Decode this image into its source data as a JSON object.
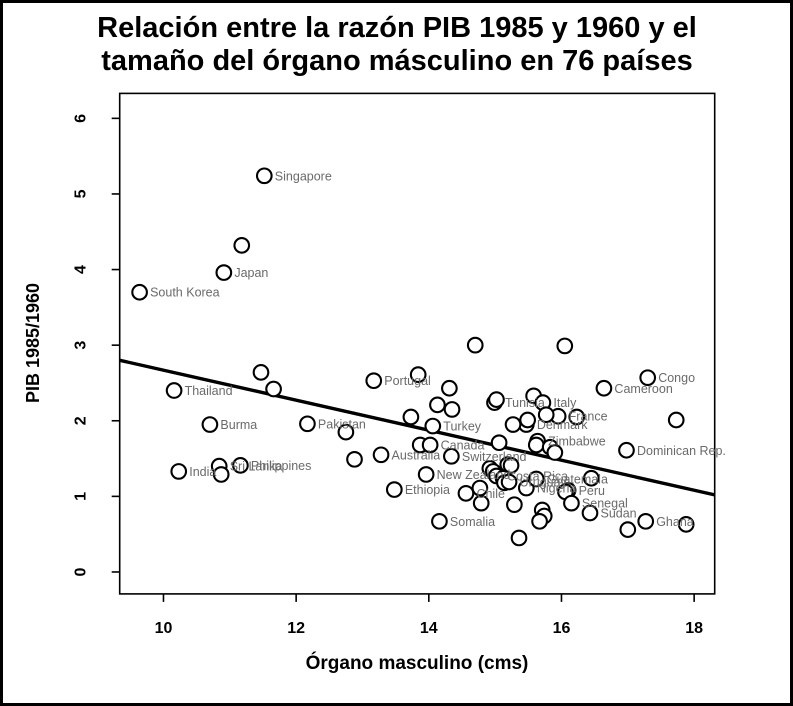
{
  "title": {
    "line1": "Relación entre la razón PIB 1985 y 1960 y el",
    "line2": "tamaño del órgano másculino en 76 países"
  },
  "style": {
    "title_color": "#000000",
    "axis_color": "#000000",
    "point_color": "#000000",
    "country_label_color": "#6a6a6a",
    "background": "#ffffff"
  },
  "chart_data": {
    "type": "scatter",
    "title": "Relación entre la razón PIB 1985 y 1960 y el tamaño del órgano másculino en 76 países",
    "xlabel": "Órgano masculino (cms)",
    "ylabel": "PIB 1985/1960",
    "xlim": [
      9.34,
      18.31
    ],
    "ylim": [
      -0.29,
      6.33
    ],
    "xticks": [
      10,
      12,
      14,
      16,
      18
    ],
    "yticks": [
      0,
      1,
      2,
      3,
      4,
      5,
      6
    ],
    "grid": false,
    "legend": "none",
    "regression_line": {
      "x1": 9.34,
      "y1": 2.8,
      "x2": 18.31,
      "y2": 1.02
    },
    "points": [
      {
        "x": 9.64,
        "y": 3.7,
        "label": "South Korea"
      },
      {
        "x": 10.91,
        "y": 3.96,
        "label": "Japan"
      },
      {
        "x": 11.52,
        "y": 5.24,
        "label": "Singapore"
      },
      {
        "x": 11.18,
        "y": 4.32,
        "label": ""
      },
      {
        "x": 10.16,
        "y": 2.4,
        "label": "Thailand"
      },
      {
        "x": 10.7,
        "y": 1.95,
        "label": "Burma"
      },
      {
        "x": 10.23,
        "y": 1.33,
        "label": "India"
      },
      {
        "x": 10.84,
        "y": 1.4,
        "label": "Sri Lanka"
      },
      {
        "x": 10.87,
        "y": 1.29,
        "label": ""
      },
      {
        "x": 11.16,
        "y": 1.41,
        "label": "Philippines"
      },
      {
        "x": 11.47,
        "y": 2.64,
        "label": ""
      },
      {
        "x": 11.66,
        "y": 2.42,
        "label": ""
      },
      {
        "x": 12.17,
        "y": 1.96,
        "label": "Pakistan"
      },
      {
        "x": 12.75,
        "y": 1.85,
        "label": ""
      },
      {
        "x": 12.88,
        "y": 1.49,
        "label": ""
      },
      {
        "x": 13.17,
        "y": 2.53,
        "label": "Portugal"
      },
      {
        "x": 13.84,
        "y": 2.61,
        "label": ""
      },
      {
        "x": 13.73,
        "y": 2.05,
        "label": ""
      },
      {
        "x": 13.28,
        "y": 1.55,
        "label": "Australia"
      },
      {
        "x": 13.87,
        "y": 1.68,
        "label": ""
      },
      {
        "x": 14.02,
        "y": 1.68,
        "label": "Canada"
      },
      {
        "x": 14.06,
        "y": 1.93,
        "label": "Turkey"
      },
      {
        "x": 14.34,
        "y": 1.53,
        "label": "Switzerland"
      },
      {
        "x": 13.96,
        "y": 1.29,
        "label": "New Zealand"
      },
      {
        "x": 13.48,
        "y": 1.09,
        "label": "Ethiopia"
      },
      {
        "x": 14.16,
        "y": 0.67,
        "label": "Somalia"
      },
      {
        "x": 14.31,
        "y": 2.43,
        "label": ""
      },
      {
        "x": 14.13,
        "y": 2.21,
        "label": ""
      },
      {
        "x": 14.35,
        "y": 2.15,
        "label": ""
      },
      {
        "x": 14.7,
        "y": 3.0,
        "label": ""
      },
      {
        "x": 16.05,
        "y": 2.99,
        "label": ""
      },
      {
        "x": 14.99,
        "y": 2.24,
        "label": "Tunisia"
      },
      {
        "x": 15.02,
        "y": 2.28,
        "label": ""
      },
      {
        "x": 15.58,
        "y": 2.33,
        "label": ""
      },
      {
        "x": 15.72,
        "y": 2.24,
        "label": "Italy"
      },
      {
        "x": 15.95,
        "y": 2.06,
        "label": "France"
      },
      {
        "x": 16.23,
        "y": 2.05,
        "label": ""
      },
      {
        "x": 15.47,
        "y": 1.95,
        "label": "Denmark"
      },
      {
        "x": 15.27,
        "y": 1.95,
        "label": ""
      },
      {
        "x": 15.49,
        "y": 2.01,
        "label": ""
      },
      {
        "x": 15.77,
        "y": 2.08,
        "label": ""
      },
      {
        "x": 15.64,
        "y": 1.73,
        "label": "Zimbabwe"
      },
      {
        "x": 15.62,
        "y": 1.68,
        "label": ""
      },
      {
        "x": 15.83,
        "y": 1.65,
        "label": ""
      },
      {
        "x": 15.9,
        "y": 1.58,
        "label": ""
      },
      {
        "x": 15.06,
        "y": 1.71,
        "label": ""
      },
      {
        "x": 16.98,
        "y": 1.61,
        "label": "Dominican Rep."
      },
      {
        "x": 16.64,
        "y": 2.43,
        "label": "Cameroon"
      },
      {
        "x": 17.3,
        "y": 2.57,
        "label": "Congo"
      },
      {
        "x": 17.73,
        "y": 2.01,
        "label": ""
      },
      {
        "x": 14.92,
        "y": 1.37,
        "label": ""
      },
      {
        "x": 15.19,
        "y": 1.42,
        "label": ""
      },
      {
        "x": 15.24,
        "y": 1.41,
        "label": ""
      },
      {
        "x": 14.97,
        "y": 1.33,
        "label": ""
      },
      {
        "x": 15.02,
        "y": 1.27,
        "label": "Costa Rica"
      },
      {
        "x": 15.12,
        "y": 1.24,
        "label": ""
      },
      {
        "x": 14.77,
        "y": 1.11,
        "label": ""
      },
      {
        "x": 14.56,
        "y": 1.04,
        "label": "Chile"
      },
      {
        "x": 14.79,
        "y": 0.91,
        "label": ""
      },
      {
        "x": 15.14,
        "y": 1.18,
        "label": ""
      },
      {
        "x": 15.21,
        "y": 1.19,
        "label": "Uruguay"
      },
      {
        "x": 15.47,
        "y": 1.11,
        "label": "Nigeria"
      },
      {
        "x": 15.62,
        "y": 1.23,
        "label": "Guatemala"
      },
      {
        "x": 15.29,
        "y": 0.89,
        "label": ""
      },
      {
        "x": 15.71,
        "y": 0.82,
        "label": ""
      },
      {
        "x": 15.74,
        "y": 0.74,
        "label": ""
      },
      {
        "x": 15.67,
        "y": 0.67,
        "label": ""
      },
      {
        "x": 16.1,
        "y": 1.08,
        "label": "Peru"
      },
      {
        "x": 16.06,
        "y": 1.06,
        "label": ""
      },
      {
        "x": 16.45,
        "y": 1.24,
        "label": ""
      },
      {
        "x": 16.15,
        "y": 0.91,
        "label": "Senegal"
      },
      {
        "x": 16.43,
        "y": 0.78,
        "label": "Sudan"
      },
      {
        "x": 17.27,
        "y": 0.67,
        "label": "Ghana"
      },
      {
        "x": 17.88,
        "y": 0.63,
        "label": ""
      },
      {
        "x": 17.0,
        "y": 0.56,
        "label": ""
      },
      {
        "x": 15.36,
        "y": 0.45,
        "label": ""
      }
    ]
  }
}
